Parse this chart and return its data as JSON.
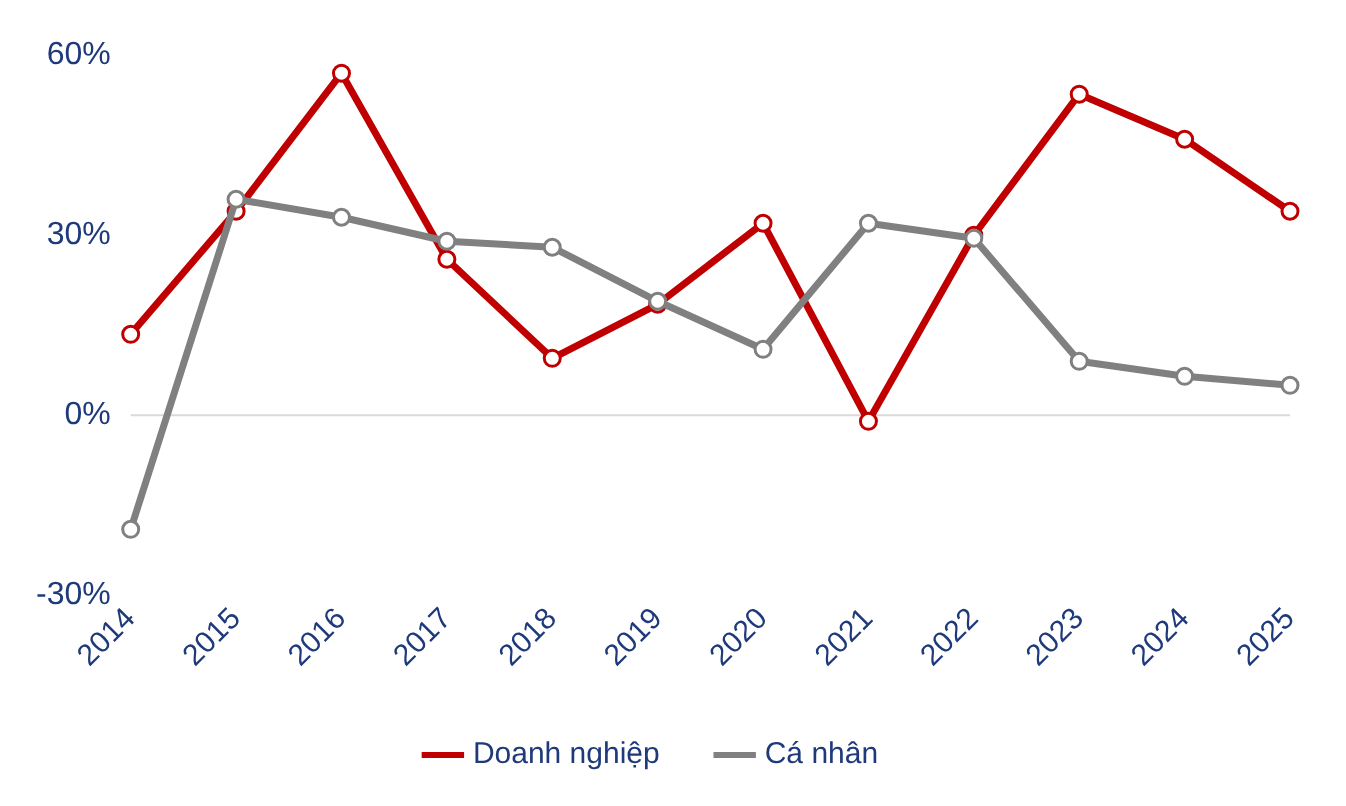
{
  "chart_data": {
    "type": "line",
    "categories": [
      "2014",
      "2015",
      "2016",
      "2017",
      "2018",
      "2019",
      "2020",
      "2021",
      "2022",
      "2023",
      "2024",
      "2025"
    ],
    "series": [
      {
        "name": "Doanh nghiệp",
        "color": "#c00000",
        "values": [
          13.5,
          34,
          57,
          26,
          9.5,
          18.5,
          32,
          -1,
          30,
          53.5,
          46,
          34
        ]
      },
      {
        "name": "Cá nhân",
        "color": "#808080",
        "values": [
          -19,
          36,
          33,
          29,
          28,
          19,
          11,
          32,
          29.5,
          9,
          6.5,
          5
        ]
      }
    ],
    "ylim": [
      -30,
      60
    ],
    "yticks": [
      {
        "value": -30,
        "label": "-30%"
      },
      {
        "value": 0,
        "label": "0%"
      },
      {
        "value": 30,
        "label": "30%"
      },
      {
        "value": 60,
        "label": "60%"
      }
    ],
    "ref_lines": [
      {
        "axis": "y",
        "value": 0,
        "color": "#d9d9d9"
      }
    ],
    "grid": false,
    "legend": "bottom",
    "marker": "circle",
    "line_style": "solid"
  }
}
